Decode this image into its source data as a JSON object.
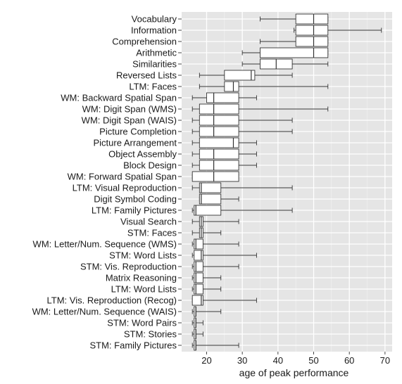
{
  "chart_data": {
    "type": "boxplot",
    "orientation": "horizontal",
    "xlabel": "age of peak performance",
    "xlim": [
      13,
      72
    ],
    "xticks": [
      20,
      30,
      40,
      50,
      60,
      70
    ],
    "grid": true,
    "background": "#e5e5e5",
    "categories": [
      "Vocabulary",
      "Information",
      "Comprehension",
      "Arithmetic",
      "Similarities",
      "Reversed Lists",
      "LTM: Faces",
      "WM: Backward Spatial Span",
      "WM: Digit Span (WMS)",
      "WM: Digit Span (WAIS)",
      "Picture Completion",
      "Picture Arrangement",
      "Object Assembly",
      "Block Design",
      "WM: Forward Spatial Span",
      "LTM: Visual Reproduction",
      "Digit Symbol Coding",
      "LTM: Family Pictures",
      "Visual Search",
      "STM: Faces",
      "WM: Letter/Num. Sequence (WMS)",
      "STM: Word Lists",
      "STM: Vis. Reproduction",
      "Matrix Reasoning",
      "LTM: Word Lists",
      "LTM: Vis. Reproduction (Recog)",
      "WM: Letter/Num. Sequence (WAIS)",
      "STM: Word Pairs",
      "STM: Stories",
      "STM: Family Pictures"
    ],
    "boxes": [
      {
        "min": 35,
        "q1": 45,
        "median": 50,
        "q3": 54,
        "max": 54
      },
      {
        "min": 44.5,
        "q1": 45,
        "median": 50,
        "q3": 54,
        "max": 69
      },
      {
        "min": 35,
        "q1": 45,
        "median": 50,
        "q3": 54,
        "max": 54
      },
      {
        "min": 30,
        "q1": 35,
        "median": 50,
        "q3": 54,
        "max": 54
      },
      {
        "min": 30,
        "q1": 35,
        "median": 39.5,
        "q3": 44,
        "max": 54
      },
      {
        "min": 18,
        "q1": 25,
        "median": 32.5,
        "q3": 33.5,
        "max": 44
      },
      {
        "min": 18,
        "q1": 25,
        "median": 27.5,
        "q3": 29,
        "max": 54
      },
      {
        "min": 16,
        "q1": 20,
        "median": 22,
        "q3": 29,
        "max": 34
      },
      {
        "min": 16,
        "q1": 18,
        "median": 22,
        "q3": 29,
        "max": 54
      },
      {
        "min": 16,
        "q1": 18,
        "median": 22,
        "q3": 29,
        "max": 44
      },
      {
        "min": 16,
        "q1": 18,
        "median": 22,
        "q3": 29,
        "max": 44
      },
      {
        "min": 16,
        "q1": 18,
        "median": 27.5,
        "q3": 29,
        "max": 34
      },
      {
        "min": 16,
        "q1": 18,
        "median": 22,
        "q3": 29,
        "max": 34
      },
      {
        "min": 16,
        "q1": 18,
        "median": 22,
        "q3": 29,
        "max": 34
      },
      {
        "min": 16,
        "q1": 16,
        "median": 22,
        "q3": 29,
        "max": 29
      },
      {
        "min": 16,
        "q1": 18,
        "median": 18.5,
        "q3": 24,
        "max": 44
      },
      {
        "min": 18,
        "q1": 18,
        "median": 18.5,
        "q3": 24,
        "max": 29
      },
      {
        "min": 16,
        "q1": 16.5,
        "median": 17,
        "q3": 24,
        "max": 44
      },
      {
        "min": 16,
        "q1": 18,
        "median": 18.5,
        "q3": 19,
        "max": 29
      },
      {
        "min": 16,
        "q1": 18,
        "median": 18.5,
        "q3": 19,
        "max": 24
      },
      {
        "min": 16,
        "q1": 16.5,
        "median": 17,
        "q3": 19,
        "max": 29
      },
      {
        "min": 16,
        "q1": 16.5,
        "median": 18.5,
        "q3": 19,
        "max": 34
      },
      {
        "min": 16,
        "q1": 16.5,
        "median": 17,
        "q3": 19,
        "max": 29
      },
      {
        "min": 16,
        "q1": 16.5,
        "median": 17,
        "q3": 19,
        "max": 24
      },
      {
        "min": 16,
        "q1": 16.5,
        "median": 17,
        "q3": 19,
        "max": 24
      },
      {
        "min": 16,
        "q1": 16,
        "median": 18.5,
        "q3": 19,
        "max": 34
      },
      {
        "min": 16,
        "q1": 16.5,
        "median": 17,
        "q3": 17,
        "max": 24
      },
      {
        "min": 16,
        "q1": 16.5,
        "median": 17,
        "q3": 17,
        "max": 19
      },
      {
        "min": 16,
        "q1": 16.5,
        "median": 17,
        "q3": 17,
        "max": 19
      },
      {
        "min": 16,
        "q1": 16.5,
        "median": 17,
        "q3": 17,
        "max": 29
      }
    ]
  }
}
